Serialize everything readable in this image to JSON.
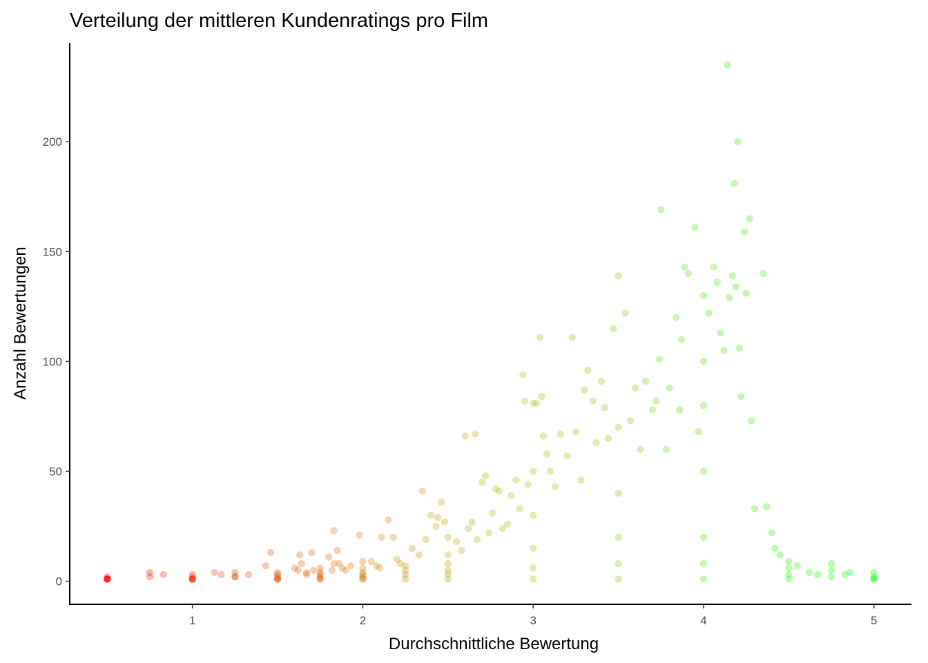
{
  "chart_data": {
    "type": "scatter",
    "title": "Verteilung der mittleren Kundenratings pro Film",
    "xlabel": "Durchschnittliche Bewertung",
    "ylabel": "Anzahl Bewertungen",
    "xlim": [
      0.28,
      5.22
    ],
    "ylim": [
      -10.5,
      245
    ],
    "xticks": [
      "1",
      "2",
      "3",
      "4",
      "5"
    ],
    "yticks": [
      "0",
      "50",
      "100",
      "150",
      "200"
    ],
    "grid": false,
    "legend": "none",
    "color_low": "#ff0000",
    "color_mid": "#b3b300",
    "color_high": "#00ff00",
    "point_opacity": 0.3,
    "points": [
      [
        0.5,
        2
      ],
      [
        0.5,
        1
      ],
      [
        0.5,
        1
      ],
      [
        0.5,
        1
      ],
      [
        0.5,
        1
      ],
      [
        0.5,
        1
      ],
      [
        0.75,
        4
      ],
      [
        0.75,
        2
      ],
      [
        0.83,
        3
      ],
      [
        1,
        3
      ],
      [
        1,
        2
      ],
      [
        1,
        1
      ],
      [
        1,
        1
      ],
      [
        1,
        1
      ],
      [
        1,
        1
      ],
      [
        1.13,
        4
      ],
      [
        1.17,
        3
      ],
      [
        1.25,
        4
      ],
      [
        1.25,
        2
      ],
      [
        1.25,
        2
      ],
      [
        1.33,
        3
      ],
      [
        1.43,
        7
      ],
      [
        1.46,
        13
      ],
      [
        1.5,
        4
      ],
      [
        1.5,
        3
      ],
      [
        1.5,
        2
      ],
      [
        1.5,
        1
      ],
      [
        1.5,
        1
      ],
      [
        1.5,
        1
      ],
      [
        1.6,
        6
      ],
      [
        1.62,
        5
      ],
      [
        1.63,
        12
      ],
      [
        1.64,
        8
      ],
      [
        1.67,
        4
      ],
      [
        1.67,
        3
      ],
      [
        1.7,
        13
      ],
      [
        1.71,
        5
      ],
      [
        1.75,
        6
      ],
      [
        1.75,
        4
      ],
      [
        1.75,
        3
      ],
      [
        1.75,
        2
      ],
      [
        1.75,
        1
      ],
      [
        1.75,
        1
      ],
      [
        1.8,
        11
      ],
      [
        1.82,
        5
      ],
      [
        1.83,
        23
      ],
      [
        1.83,
        8
      ],
      [
        1.85,
        14
      ],
      [
        1.86,
        8
      ],
      [
        1.88,
        6
      ],
      [
        1.9,
        5
      ],
      [
        1.93,
        7
      ],
      [
        1.98,
        21
      ],
      [
        2,
        9
      ],
      [
        2,
        6
      ],
      [
        2,
        4
      ],
      [
        2,
        3
      ],
      [
        2,
        2
      ],
      [
        2,
        1
      ],
      [
        2,
        1
      ],
      [
        2.05,
        9
      ],
      [
        2.08,
        7
      ],
      [
        2.1,
        6
      ],
      [
        2.11,
        20
      ],
      [
        2.15,
        28
      ],
      [
        2.18,
        20
      ],
      [
        2.2,
        10
      ],
      [
        2.22,
        8
      ],
      [
        2.25,
        7
      ],
      [
        2.25,
        5
      ],
      [
        2.25,
        3
      ],
      [
        2.25,
        1
      ],
      [
        2.29,
        15
      ],
      [
        2.33,
        12
      ],
      [
        2.35,
        41
      ],
      [
        2.37,
        19
      ],
      [
        2.4,
        30
      ],
      [
        2.43,
        25
      ],
      [
        2.44,
        29
      ],
      [
        2.46,
        36
      ],
      [
        2.48,
        27
      ],
      [
        2.5,
        20
      ],
      [
        2.5,
        12
      ],
      [
        2.5,
        8
      ],
      [
        2.5,
        5
      ],
      [
        2.5,
        3
      ],
      [
        2.5,
        1
      ],
      [
        2.55,
        18
      ],
      [
        2.58,
        14
      ],
      [
        2.6,
        66
      ],
      [
        2.62,
        24
      ],
      [
        2.64,
        27
      ],
      [
        2.66,
        67
      ],
      [
        2.67,
        19
      ],
      [
        2.7,
        45
      ],
      [
        2.72,
        48
      ],
      [
        2.74,
        22
      ],
      [
        2.76,
        31
      ],
      [
        2.78,
        42
      ],
      [
        2.8,
        41
      ],
      [
        2.82,
        24
      ],
      [
        2.85,
        26
      ],
      [
        2.87,
        39
      ],
      [
        2.9,
        46
      ],
      [
        2.92,
        33
      ],
      [
        2.94,
        94
      ],
      [
        2.95,
        82
      ],
      [
        2.97,
        44
      ],
      [
        3,
        81
      ],
      [
        3,
        50
      ],
      [
        3,
        30
      ],
      [
        3,
        15
      ],
      [
        3,
        6
      ],
      [
        3,
        1
      ],
      [
        3.02,
        81
      ],
      [
        3.04,
        111
      ],
      [
        3.05,
        84
      ],
      [
        3.06,
        66
      ],
      [
        3.08,
        58
      ],
      [
        3.1,
        50
      ],
      [
        3.13,
        43
      ],
      [
        3.16,
        67
      ],
      [
        3.2,
        57
      ],
      [
        3.23,
        111
      ],
      [
        3.25,
        68
      ],
      [
        3.28,
        46
      ],
      [
        3.3,
        87
      ],
      [
        3.32,
        96
      ],
      [
        3.35,
        82
      ],
      [
        3.37,
        63
      ],
      [
        3.4,
        91
      ],
      [
        3.42,
        79
      ],
      [
        3.44,
        65
      ],
      [
        3.47,
        115
      ],
      [
        3.5,
        139
      ],
      [
        3.5,
        70
      ],
      [
        3.5,
        40
      ],
      [
        3.5,
        20
      ],
      [
        3.5,
        8
      ],
      [
        3.5,
        1
      ],
      [
        3.54,
        122
      ],
      [
        3.57,
        73
      ],
      [
        3.6,
        88
      ],
      [
        3.63,
        60
      ],
      [
        3.66,
        91
      ],
      [
        3.7,
        78
      ],
      [
        3.72,
        82
      ],
      [
        3.75,
        169
      ],
      [
        3.74,
        101
      ],
      [
        3.78,
        60
      ],
      [
        3.8,
        88
      ],
      [
        3.84,
        120
      ],
      [
        3.86,
        78
      ],
      [
        3.87,
        110
      ],
      [
        3.89,
        143
      ],
      [
        3.91,
        140
      ],
      [
        3.95,
        161
      ],
      [
        3.97,
        68
      ],
      [
        4,
        130
      ],
      [
        4,
        100
      ],
      [
        4,
        80
      ],
      [
        4,
        50
      ],
      [
        4,
        20
      ],
      [
        4,
        8
      ],
      [
        4,
        1
      ],
      [
        4.03,
        122
      ],
      [
        4.06,
        143
      ],
      [
        4.08,
        136
      ],
      [
        4.1,
        113
      ],
      [
        4.12,
        105
      ],
      [
        4.15,
        129
      ],
      [
        4.17,
        139
      ],
      [
        4.19,
        134
      ],
      [
        4.18,
        181
      ],
      [
        4.2,
        200
      ],
      [
        4.21,
        106
      ],
      [
        4.22,
        84
      ],
      [
        4.24,
        159
      ],
      [
        4.25,
        131
      ],
      [
        4.27,
        165
      ],
      [
        4.28,
        73
      ],
      [
        4.3,
        33
      ],
      [
        4.35,
        140
      ],
      [
        4.37,
        34
      ],
      [
        4.4,
        22
      ],
      [
        4.42,
        15
      ],
      [
        4.45,
        12
      ],
      [
        4.5,
        9
      ],
      [
        4.5,
        6
      ],
      [
        4.5,
        3
      ],
      [
        4.5,
        1
      ],
      [
        4.55,
        7
      ],
      [
        4.62,
        4
      ],
      [
        4.67,
        3
      ],
      [
        4.75,
        8
      ],
      [
        4.75,
        5
      ],
      [
        4.75,
        2
      ],
      [
        4.83,
        3
      ],
      [
        4.86,
        4
      ],
      [
        5,
        4
      ],
      [
        5,
        2
      ],
      [
        5,
        1
      ],
      [
        5,
        1
      ],
      [
        4.14,
        235
      ]
    ]
  }
}
